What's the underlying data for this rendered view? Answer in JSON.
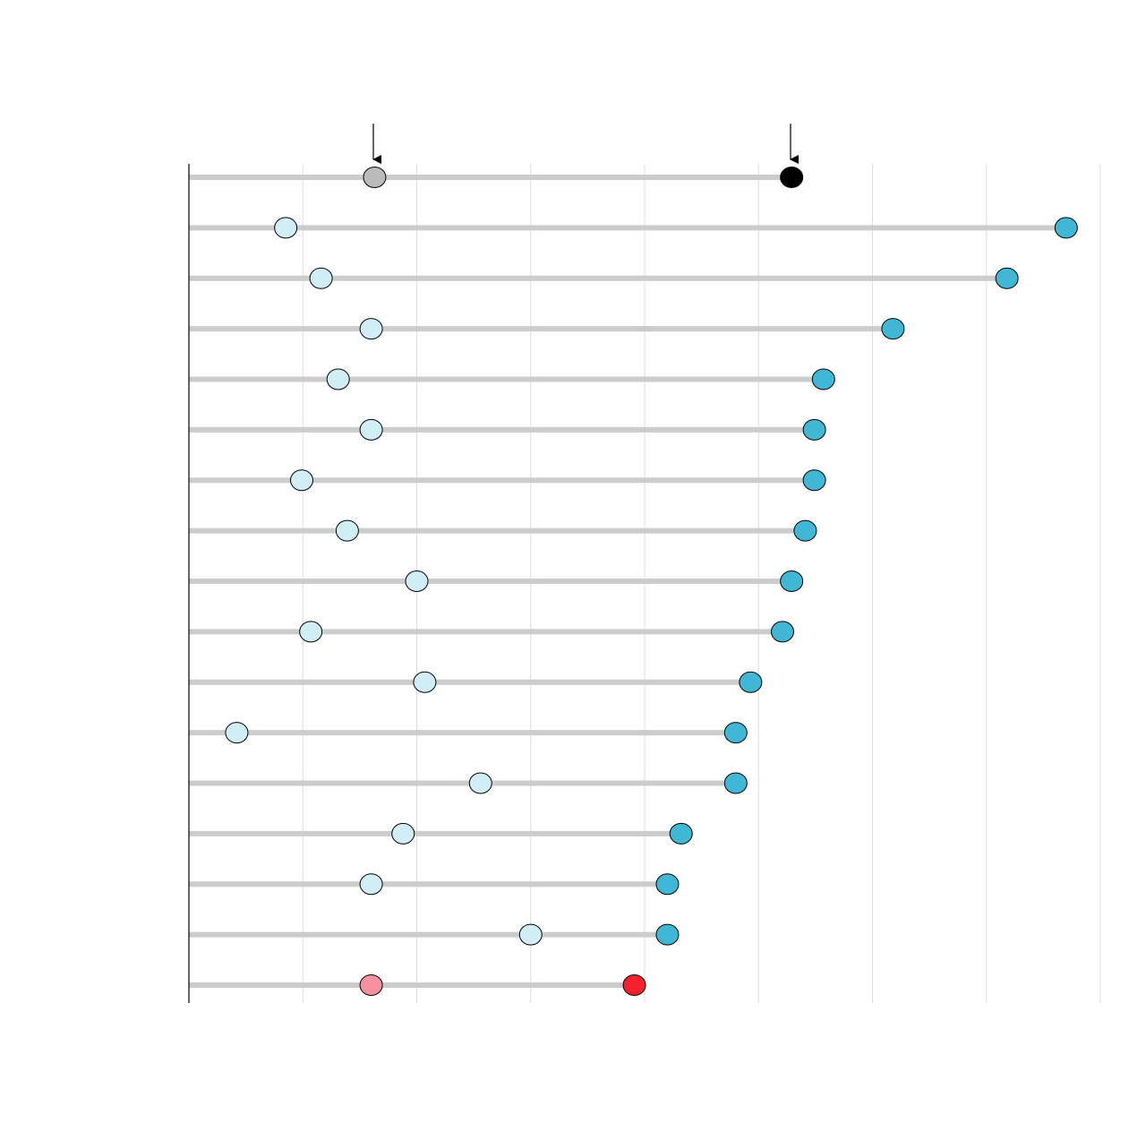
{
  "chart_data": {
    "type": "dumbbell",
    "categories": [
      null,
      null,
      null,
      null,
      null,
      null,
      null,
      null,
      null,
      null,
      null,
      null,
      null,
      null,
      null,
      null,
      null
    ],
    "xlim": [
      0,
      8
    ],
    "xticks": [
      0,
      1,
      2,
      3,
      4,
      5,
      6,
      7,
      8
    ],
    "grid": true,
    "series": [
      {
        "colors": [
          "#bbbbbb",
          "#d1eef6",
          "#d1eef6",
          "#d1eef6",
          "#d1eef6",
          "#d1eef6",
          "#d1eef6",
          "#d1eef6",
          "#d1eef6",
          "#d1eef6",
          "#d1eef6",
          "#d1eef6",
          "#d1eef6",
          "#d1eef6",
          "#d1eef6",
          "#d1eef6",
          "#f7909f"
        ],
        "values": [
          1.63,
          0.85,
          1.16,
          1.6,
          1.31,
          1.6,
          0.99,
          1.39,
          2.0,
          1.07,
          2.07,
          0.42,
          2.56,
          1.88,
          1.6,
          3.0,
          1.6
        ]
      },
      {
        "colors": [
          "#000000",
          "#42b6d5",
          "#42b6d5",
          "#42b6d5",
          "#42b6d5",
          "#42b6d5",
          "#42b6d5",
          "#42b6d5",
          "#42b6d5",
          "#42b6d5",
          "#42b6d5",
          "#42b6d5",
          "#42b6d5",
          "#42b6d5",
          "#42b6d5",
          "#42b6d5",
          "#f5222d"
        ],
        "values": [
          5.29,
          7.7,
          7.18,
          6.18,
          5.57,
          5.49,
          5.49,
          5.41,
          5.29,
          5.21,
          4.93,
          4.8,
          4.8,
          4.32,
          4.2,
          4.2,
          3.91
        ]
      }
    ]
  }
}
